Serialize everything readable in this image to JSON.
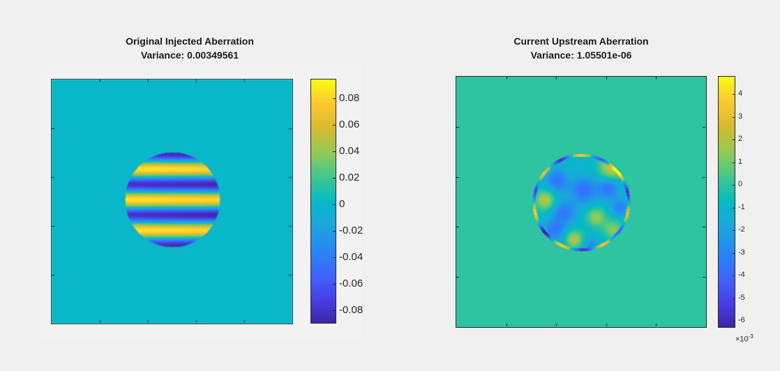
{
  "chart_data": [
    {
      "type": "heatmap",
      "title": "Original Injected Aberration",
      "subtitle": "Variance: 0.00349561",
      "colormap": "parula",
      "clim": [
        -0.09,
        0.095
      ],
      "background_value": 0,
      "pattern": "horizontal fringes inside circular pupil",
      "colorbar_ticks": [
        0.08,
        0.06,
        0.04,
        0.02,
        0,
        -0.02,
        -0.04,
        -0.06,
        -0.08
      ],
      "colorbar_tick_labels": [
        "0.08",
        "0.06",
        "0.04",
        "0.02",
        "0",
        "-0.02",
        "-0.04",
        "-0.06",
        "-0.08"
      ]
    },
    {
      "type": "heatmap",
      "title": "Current Upstream Aberration",
      "subtitle": "Variance: 1.05501e-06",
      "colormap": "parula",
      "clim": [
        -6.3,
        4.8
      ],
      "background_value": 0,
      "pattern": "residual blobs inside circular pupil",
      "colorbar_ticks": [
        4,
        3,
        2,
        1,
        0,
        -1,
        -2,
        -3,
        -4,
        -5,
        -6
      ],
      "colorbar_tick_labels": [
        "4",
        "3",
        "2",
        "1",
        "0",
        "-1",
        "-2",
        "-3",
        "-4",
        "-5",
        "-6"
      ],
      "colorbar_exponent": "×10",
      "colorbar_exponent_power": "-3"
    }
  ]
}
